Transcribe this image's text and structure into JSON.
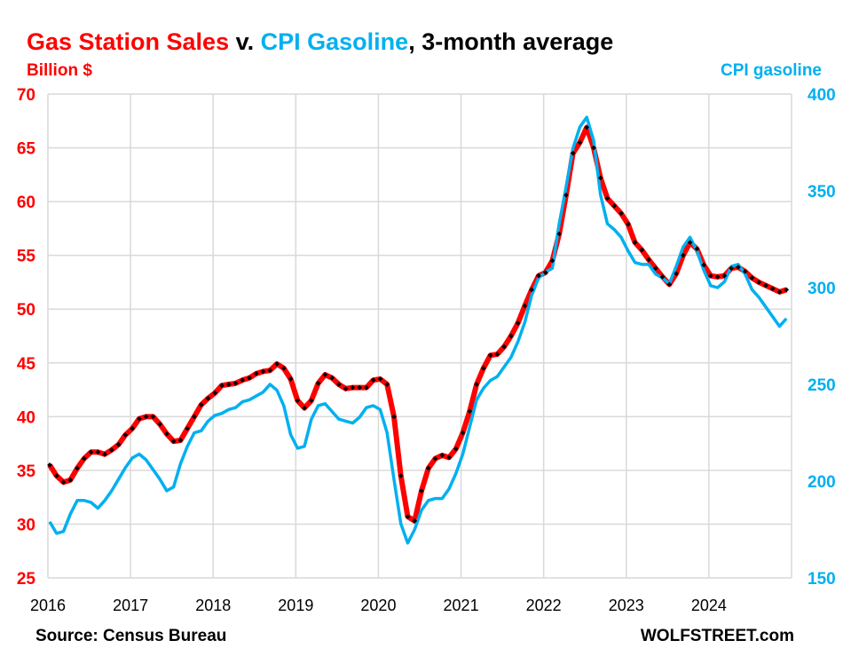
{
  "chart_data": {
    "type": "line",
    "title_parts": {
      "sales": "Gas Station Sales",
      "v": " v. ",
      "cpi": "CPI Gasoline",
      "rest": ", 3-month average"
    },
    "left_axis_label": "Billion $",
    "right_axis_label": "CPI gasoline",
    "source": "Source: Census Bureau",
    "brand": "WOLFSTREET.com",
    "colors": {
      "sales": "#FF0000",
      "cpi": "#00B0F0",
      "marker": "#000000",
      "grid": "#D9D9D9"
    },
    "x_start": "2016-01",
    "x_end": "2024-12",
    "frequency": "monthly",
    "x_ticks": [
      "2016",
      "2017",
      "2018",
      "2019",
      "2020",
      "2021",
      "2022",
      "2023",
      "2024"
    ],
    "ylim_left": [
      25,
      70
    ],
    "y_ticks_left": [
      "25",
      "30",
      "35",
      "40",
      "45",
      "50",
      "55",
      "60",
      "65",
      "70"
    ],
    "ylim_right": [
      150,
      400
    ],
    "y_ticks_right": [
      "150",
      "200",
      "250",
      "300",
      "350",
      "400"
    ],
    "grid": true,
    "series": [
      {
        "name": "Gas Station Sales (Billion $)",
        "axis": "left",
        "values": [
          35.5,
          34.5,
          33.9,
          34.1,
          35.2,
          36.1,
          36.7,
          36.7,
          36.5,
          36.9,
          37.4,
          38.3,
          38.9,
          39.8,
          40.0,
          40.0,
          39.3,
          38.4,
          37.7,
          37.8,
          38.9,
          40.0,
          41.1,
          41.7,
          42.2,
          42.9,
          43.0,
          43.1,
          43.4,
          43.6,
          44.0,
          44.2,
          44.3,
          44.9,
          44.5,
          43.5,
          41.5,
          40.8,
          41.5,
          43.1,
          43.9,
          43.6,
          43.0,
          42.6,
          42.7,
          42.7,
          42.7,
          43.4,
          43.5,
          43.0,
          40.0,
          34.5,
          30.7,
          30.3,
          33.1,
          35.2,
          36.1,
          36.4,
          36.2,
          37.0,
          38.5,
          40.5,
          43.0,
          44.5,
          45.7,
          45.8,
          46.5,
          47.5,
          48.7,
          50.3,
          51.8,
          53.1,
          53.4,
          54.5,
          57.0,
          60.6,
          64.5,
          65.5,
          66.9,
          65.0,
          62.2,
          60.3,
          59.6,
          58.9,
          57.9,
          56.2,
          55.5,
          54.6,
          53.8,
          53.0,
          52.3,
          53.3,
          55.0,
          56.2,
          55.6,
          54.1,
          53.1,
          53.0,
          53.1,
          53.8,
          53.9,
          53.5,
          52.9,
          52.5,
          52.2,
          51.9,
          51.6,
          51.8
        ]
      },
      {
        "name": "CPI gasoline",
        "axis": "right",
        "values": [
          179,
          173,
          174,
          183,
          190,
          190,
          189,
          186,
          190,
          195,
          201,
          207,
          212,
          214,
          211,
          206,
          201,
          195,
          197,
          209,
          218,
          225,
          226,
          231,
          234,
          235,
          237,
          238,
          241,
          242,
          244,
          246,
          250,
          247,
          239,
          224,
          217,
          218,
          232,
          239,
          240,
          236,
          232,
          231,
          230,
          233,
          238,
          239,
          237,
          225,
          201,
          178,
          168,
          175,
          185,
          190,
          191,
          191,
          196,
          204,
          214,
          228,
          242,
          248,
          252,
          254,
          259,
          264,
          272,
          282,
          296,
          305,
          308,
          310,
          333,
          352,
          372,
          383,
          388,
          376,
          348,
          333,
          330,
          326,
          319,
          313,
          312,
          312,
          307,
          305,
          302,
          311,
          321,
          326,
          319,
          309,
          301,
          300,
          303,
          311,
          312,
          307,
          299,
          295,
          290,
          285,
          280,
          284
        ]
      }
    ]
  }
}
